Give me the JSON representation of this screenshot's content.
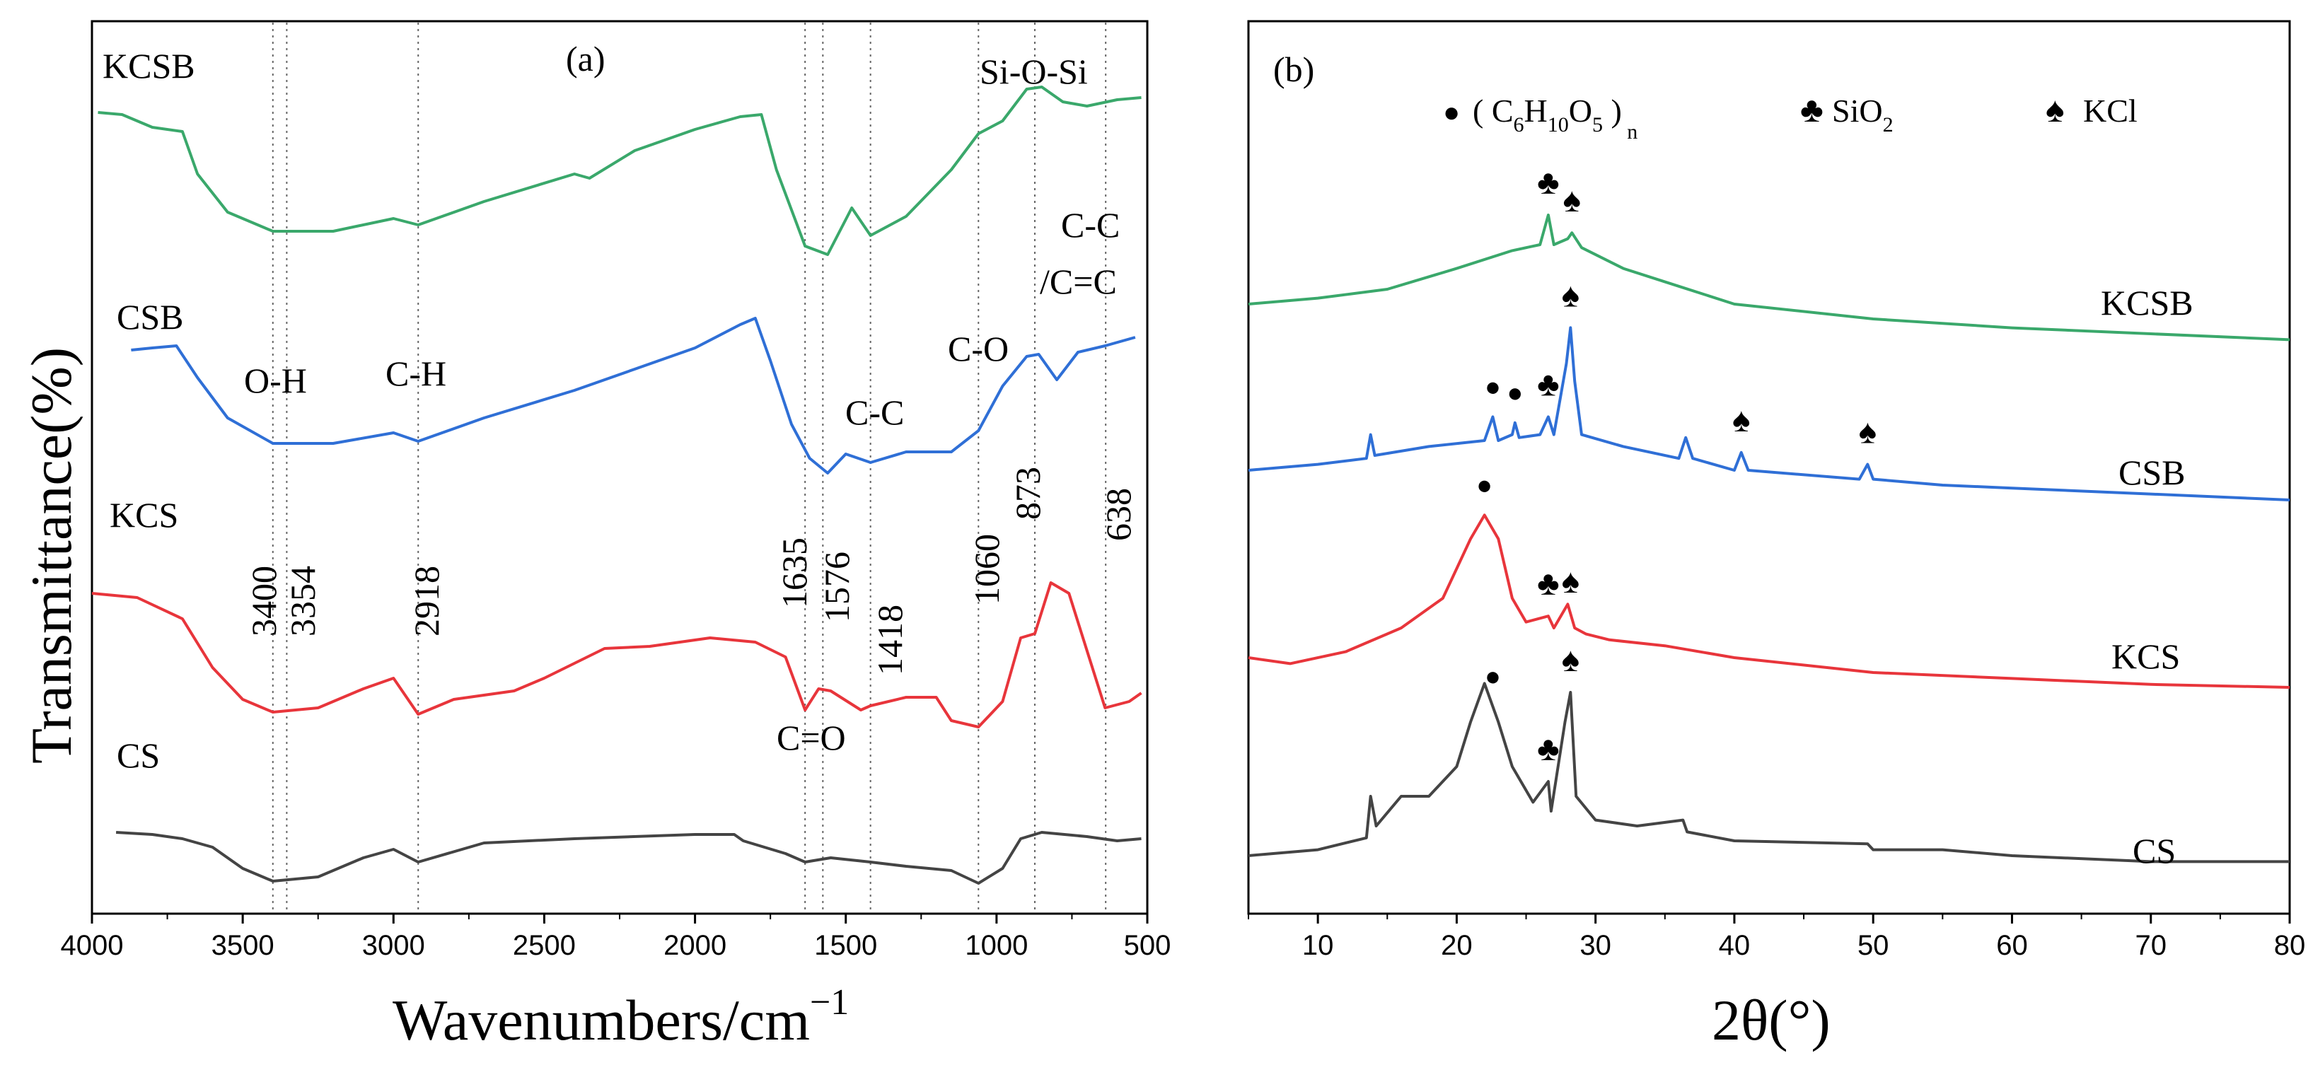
{
  "chart_data": [
    {
      "type": "line",
      "panel": "(a)",
      "xlabel": "Wavenumbers/cm",
      "xlabel_sup": "−1",
      "ylabel": "Transmittance(%)",
      "xlim": [
        4000,
        500
      ],
      "xticks": [
        "4000",
        "3500",
        "3000",
        "2500",
        "2000",
        "1500",
        "1000",
        "500"
      ],
      "reference_lines": [
        3400,
        3354,
        2918,
        1635,
        1576,
        1418,
        1060,
        873,
        638
      ],
      "peak_labels": [
        "3400",
        "3354",
        "2918",
        "1635",
        "1576",
        "1418",
        "1060",
        "873",
        "638"
      ],
      "band_labels": [
        "O-H",
        "C-H",
        "C-C",
        "C-O",
        "C=O",
        "Si-O-Si",
        "C-C",
        "/C=C"
      ],
      "series": [
        {
          "name": "KCSB",
          "color": "#3aa86b",
          "points": [
            [
              3980,
              0.77
            ],
            [
              3900,
              0.76
            ],
            [
              3800,
              0.7
            ],
            [
              3700,
              0.68
            ],
            [
              3650,
              0.48
            ],
            [
              3550,
              0.3
            ],
            [
              3400,
              0.21
            ],
            [
              3200,
              0.21
            ],
            [
              3000,
              0.27
            ],
            [
              2918,
              0.24
            ],
            [
              2700,
              0.35
            ],
            [
              2400,
              0.48
            ],
            [
              2350,
              0.46
            ],
            [
              2200,
              0.59
            ],
            [
              2000,
              0.69
            ],
            [
              1850,
              0.75
            ],
            [
              1780,
              0.76
            ],
            [
              1730,
              0.5
            ],
            [
              1635,
              0.14
            ],
            [
              1560,
              0.1
            ],
            [
              1480,
              0.32
            ],
            [
              1418,
              0.19
            ],
            [
              1300,
              0.28
            ],
            [
              1150,
              0.5
            ],
            [
              1060,
              0.67
            ],
            [
              980,
              0.73
            ],
            [
              900,
              0.88
            ],
            [
              850,
              0.89
            ],
            [
              780,
              0.82
            ],
            [
              700,
              0.8
            ],
            [
              600,
              0.83
            ],
            [
              520,
              0.84
            ]
          ]
        },
        {
          "name": "CSB",
          "color": "#2f6fd6",
          "points": [
            [
              3870,
              0.75
            ],
            [
              3800,
              0.76
            ],
            [
              3720,
              0.77
            ],
            [
              3650,
              0.62
            ],
            [
              3550,
              0.43
            ],
            [
              3400,
              0.31
            ],
            [
              3200,
              0.31
            ],
            [
              3000,
              0.36
            ],
            [
              2918,
              0.32
            ],
            [
              2700,
              0.43
            ],
            [
              2400,
              0.56
            ],
            [
              2200,
              0.66
            ],
            [
              2000,
              0.76
            ],
            [
              1850,
              0.87
            ],
            [
              1800,
              0.9
            ],
            [
              1750,
              0.7
            ],
            [
              1680,
              0.4
            ],
            [
              1620,
              0.24
            ],
            [
              1560,
              0.17
            ],
            [
              1500,
              0.26
            ],
            [
              1418,
              0.22
            ],
            [
              1300,
              0.27
            ],
            [
              1150,
              0.27
            ],
            [
              1060,
              0.37
            ],
            [
              980,
              0.58
            ],
            [
              900,
              0.72
            ],
            [
              860,
              0.73
            ],
            [
              800,
              0.61
            ],
            [
              730,
              0.74
            ],
            [
              640,
              0.77
            ],
            [
              540,
              0.81
            ]
          ]
        },
        {
          "name": "KCS",
          "color": "#e8353b",
          "points": [
            [
              4000,
              0.67
            ],
            [
              3850,
              0.65
            ],
            [
              3700,
              0.55
            ],
            [
              3600,
              0.32
            ],
            [
              3500,
              0.17
            ],
            [
              3400,
              0.11
            ],
            [
              3250,
              0.13
            ],
            [
              3100,
              0.22
            ],
            [
              3000,
              0.27
            ],
            [
              2918,
              0.1
            ],
            [
              2800,
              0.17
            ],
            [
              2600,
              0.21
            ],
            [
              2500,
              0.27
            ],
            [
              2300,
              0.41
            ],
            [
              2150,
              0.42
            ],
            [
              1950,
              0.46
            ],
            [
              1800,
              0.44
            ],
            [
              1700,
              0.37
            ],
            [
              1635,
              0.12
            ],
            [
              1590,
              0.22
            ],
            [
              1550,
              0.21
            ],
            [
              1450,
              0.12
            ],
            [
              1418,
              0.14
            ],
            [
              1300,
              0.18
            ],
            [
              1200,
              0.18
            ],
            [
              1150,
              0.07
            ],
            [
              1060,
              0.04
            ],
            [
              980,
              0.16
            ],
            [
              920,
              0.46
            ],
            [
              873,
              0.48
            ],
            [
              820,
              0.72
            ],
            [
              760,
              0.67
            ],
            [
              700,
              0.4
            ],
            [
              640,
              0.13
            ],
            [
              560,
              0.16
            ],
            [
              520,
              0.2
            ]
          ]
        },
        {
          "name": "CS",
          "color": "#444444",
          "points": [
            [
              3920,
              0.61
            ],
            [
              3800,
              0.6
            ],
            [
              3700,
              0.58
            ],
            [
              3600,
              0.54
            ],
            [
              3500,
              0.44
            ],
            [
              3400,
              0.38
            ],
            [
              3250,
              0.4
            ],
            [
              3100,
              0.49
            ],
            [
              3000,
              0.53
            ],
            [
              2918,
              0.47
            ],
            [
              2700,
              0.56
            ],
            [
              2400,
              0.58
            ],
            [
              2000,
              0.6
            ],
            [
              1870,
              0.6
            ],
            [
              1840,
              0.57
            ],
            [
              1700,
              0.51
            ],
            [
              1635,
              0.47
            ],
            [
              1550,
              0.49
            ],
            [
              1418,
              0.47
            ],
            [
              1300,
              0.45
            ],
            [
              1150,
              0.43
            ],
            [
              1060,
              0.37
            ],
            [
              980,
              0.44
            ],
            [
              920,
              0.58
            ],
            [
              850,
              0.61
            ],
            [
              700,
              0.59
            ],
            [
              600,
              0.57
            ],
            [
              520,
              0.58
            ]
          ]
        }
      ]
    },
    {
      "type": "line",
      "panel": "(b)",
      "xlabel": "2θ(°)",
      "xlim": [
        5,
        80
      ],
      "xticks": [
        "10",
        "20",
        "30",
        "40",
        "50",
        "60",
        "70",
        "80"
      ],
      "legend": [
        {
          "marker": "●",
          "label": "( C6H10O5 )n"
        },
        {
          "marker": "♣",
          "label": "SiO2"
        },
        {
          "marker": "♠",
          "label": "KCl"
        }
      ],
      "series": [
        {
          "name": "KCSB",
          "color": "#3aa86b",
          "points": [
            [
              5,
              0.0
            ],
            [
              10,
              0.02
            ],
            [
              15,
              0.05
            ],
            [
              20,
              0.12
            ],
            [
              24,
              0.18
            ],
            [
              26,
              0.2
            ],
            [
              26.6,
              0.3
            ],
            [
              27,
              0.2
            ],
            [
              28,
              0.22
            ],
            [
              28.3,
              0.24
            ],
            [
              29,
              0.19
            ],
            [
              32,
              0.12
            ],
            [
              36,
              0.06
            ],
            [
              40,
              0.0
            ],
            [
              50,
              -0.05
            ],
            [
              60,
              -0.08
            ],
            [
              70,
              -0.1
            ],
            [
              80,
              -0.12
            ]
          ]
        },
        {
          "name": "CSB",
          "color": "#2f6fd6",
          "points": [
            [
              5,
              0.0
            ],
            [
              10,
              0.02
            ],
            [
              13.5,
              0.04
            ],
            [
              13.8,
              0.12
            ],
            [
              14.1,
              0.05
            ],
            [
              18,
              0.08
            ],
            [
              22,
              0.1
            ],
            [
              22.6,
              0.18
            ],
            [
              23,
              0.1
            ],
            [
              24,
              0.12
            ],
            [
              24.2,
              0.16
            ],
            [
              24.5,
              0.11
            ],
            [
              26,
              0.12
            ],
            [
              26.6,
              0.18
            ],
            [
              27,
              0.12
            ],
            [
              27.9,
              0.36
            ],
            [
              28.2,
              0.48
            ],
            [
              28.5,
              0.3
            ],
            [
              29,
              0.12
            ],
            [
              32,
              0.08
            ],
            [
              36,
              0.04
            ],
            [
              36.5,
              0.11
            ],
            [
              37,
              0.04
            ],
            [
              40,
              0.0
            ],
            [
              40.5,
              0.06
            ],
            [
              41,
              0.0
            ],
            [
              49,
              -0.03
            ],
            [
              49.6,
              0.02
            ],
            [
              50,
              -0.03
            ],
            [
              55,
              -0.05
            ],
            [
              60,
              -0.06
            ],
            [
              70,
              -0.08
            ],
            [
              80,
              -0.1
            ]
          ]
        },
        {
          "name": "KCS",
          "color": "#e8353b",
          "points": [
            [
              5,
              0.0
            ],
            [
              8,
              -0.02
            ],
            [
              12,
              0.02
            ],
            [
              16,
              0.1
            ],
            [
              19,
              0.2
            ],
            [
              21,
              0.4
            ],
            [
              22,
              0.48
            ],
            [
              23,
              0.4
            ],
            [
              24,
              0.2
            ],
            [
              25,
              0.12
            ],
            [
              26.6,
              0.14
            ],
            [
              27,
              0.1
            ],
            [
              28,
              0.18
            ],
            [
              28.5,
              0.1
            ],
            [
              29.3,
              0.08
            ],
            [
              31,
              0.06
            ],
            [
              35,
              0.04
            ],
            [
              40,
              0.0
            ],
            [
              50,
              -0.05
            ],
            [
              60,
              -0.07
            ],
            [
              70,
              -0.09
            ],
            [
              80,
              -0.1
            ]
          ]
        },
        {
          "name": "CS",
          "color": "#444444",
          "points": [
            [
              5,
              0.0
            ],
            [
              10,
              0.02
            ],
            [
              13.5,
              0.06
            ],
            [
              13.8,
              0.2
            ],
            [
              14.2,
              0.1
            ],
            [
              16,
              0.2
            ],
            [
              18,
              0.2
            ],
            [
              20,
              0.3
            ],
            [
              21,
              0.45
            ],
            [
              22,
              0.58
            ],
            [
              23,
              0.45
            ],
            [
              24,
              0.3
            ],
            [
              25.5,
              0.18
            ],
            [
              26.6,
              0.25
            ],
            [
              26.8,
              0.15
            ],
            [
              27.8,
              0.45
            ],
            [
              28.2,
              0.55
            ],
            [
              28.6,
              0.2
            ],
            [
              30,
              0.12
            ],
            [
              33,
              0.1
            ],
            [
              36.3,
              0.12
            ],
            [
              36.6,
              0.08
            ],
            [
              40,
              0.05
            ],
            [
              49.6,
              0.04
            ],
            [
              50,
              0.02
            ],
            [
              55,
              0.02
            ],
            [
              60,
              0.0
            ],
            [
              70,
              -0.02
            ],
            [
              80,
              -0.02
            ]
          ]
        }
      ],
      "markers": [
        {
          "series": "KCSB",
          "symbol": "♣",
          "x": 26.6
        },
        {
          "series": "KCSB",
          "symbol": "♠",
          "x": 28.3
        },
        {
          "series": "CSB",
          "symbol": "●",
          "x": 22.6
        },
        {
          "series": "CSB",
          "symbol": "●",
          "x": 24.2
        },
        {
          "series": "CSB",
          "symbol": "♣",
          "x": 26.6
        },
        {
          "series": "CSB",
          "symbol": "♠",
          "x": 28.2
        },
        {
          "series": "CSB",
          "symbol": "♠",
          "x": 40.5
        },
        {
          "series": "CSB",
          "symbol": "♠",
          "x": 49.6
        },
        {
          "series": "KCS",
          "symbol": "●",
          "x": 22.0
        },
        {
          "series": "KCS",
          "symbol": "♣",
          "x": 26.6
        },
        {
          "series": "KCS",
          "symbol": "♠",
          "x": 28.2
        },
        {
          "series": "CS",
          "symbol": "●",
          "x": 22.6
        },
        {
          "series": "CS",
          "symbol": "♣",
          "x": 26.6
        },
        {
          "series": "CS",
          "symbol": "♠",
          "x": 28.2
        }
      ]
    }
  ]
}
